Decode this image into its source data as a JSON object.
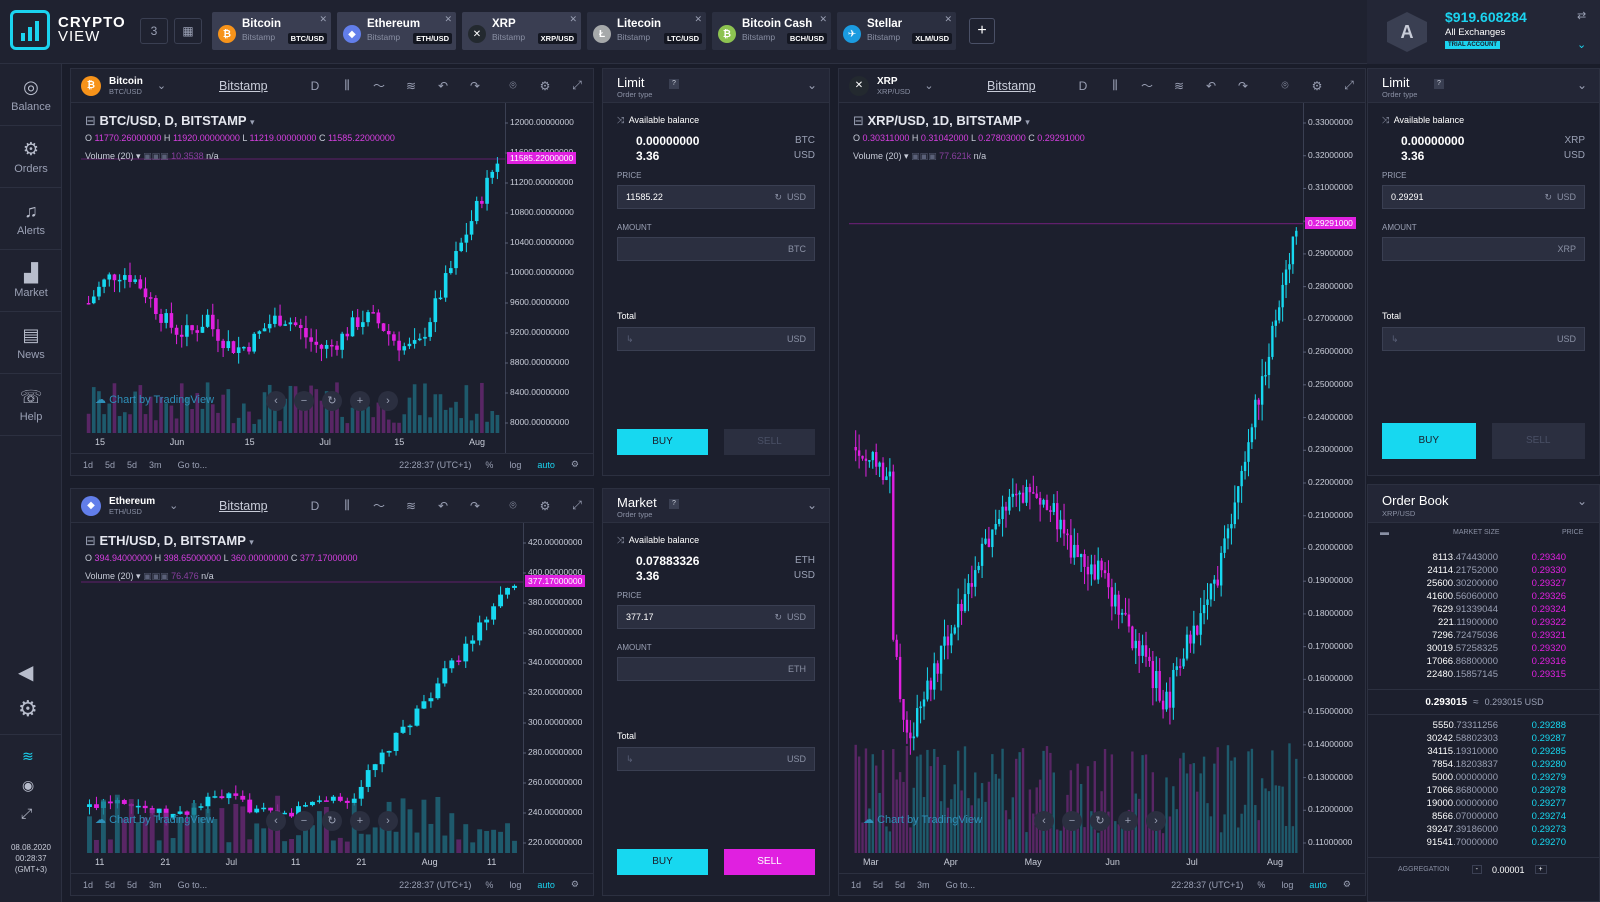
{
  "app": {
    "logo_line1": "CRYPTO",
    "logo_line2": "VIEW",
    "layout_badge": "3"
  },
  "tabs": [
    {
      "name": "Bitcoin",
      "exchange": "Bitstamp",
      "pair": "BTC/USD",
      "icon": "bitcoin-icon",
      "color": "#f7931a",
      "glyph": "₿"
    },
    {
      "name": "Ethereum",
      "exchange": "Bitstamp",
      "pair": "ETH/USD",
      "icon": "ethereum-icon",
      "color": "#627eea",
      "glyph": "◆"
    },
    {
      "name": "XRP",
      "exchange": "Bitstamp",
      "pair": "XRP/USD",
      "icon": "xrp-icon",
      "color": "#23292f",
      "glyph": "✕"
    },
    {
      "name": "Litecoin",
      "exchange": "Bitstamp",
      "pair": "LTC/USD",
      "icon": "litecoin-icon",
      "color": "#a6a9aa",
      "glyph": "Ł"
    },
    {
      "name": "Bitcoin Cash",
      "exchange": "Bitstamp",
      "pair": "BCH/USD",
      "icon": "bitcoin-cash-icon",
      "color": "#8dc351",
      "glyph": "₿"
    },
    {
      "name": "Stellar",
      "exchange": "Bitstamp",
      "pair": "XLM/USD",
      "icon": "stellar-icon",
      "color": "#1b9be0",
      "glyph": "✈"
    }
  ],
  "account": {
    "balance": "$919.608284",
    "exchanges": "All Exchanges",
    "badge": "TRIAL ACCOUNT",
    "avatar": "A"
  },
  "sidebar": {
    "items": [
      {
        "label": "Balance"
      },
      {
        "label": "Orders"
      },
      {
        "label": "Alerts"
      },
      {
        "label": "Market"
      },
      {
        "label": "News"
      },
      {
        "label": "Help"
      }
    ],
    "date": "08.08.2020",
    "time": "00:28:37",
    "tz": "(GMT+3)"
  },
  "chart_common": {
    "exchange": "Bitstamp",
    "interval": "D",
    "footer": [
      "1d",
      "5d",
      "5d",
      "3m",
      "Go to..."
    ],
    "time": "22:28:37 (UTC+1)",
    "pct": "%",
    "log": "log",
    "auto": "auto",
    "tv": "Chart by TradingView",
    "volume": "Volume (20)",
    "na": "n/a"
  },
  "btc_chart": {
    "coin": "Bitcoin",
    "pair": "BTC/USD",
    "symbol": "BTC/USD, D, BITSTAMP",
    "o": "11770.26000000",
    "h": "11920.00000000",
    "l": "11219.00000000",
    "c": "11585.22000000",
    "vol": "10.3538",
    "last": "11585.22000000",
    "yticks": [
      "12000.00000000",
      "11600.00000000",
      "11200.00000000",
      "10800.00000000",
      "10400.00000000",
      "10000.00000000",
      "9600.00000000",
      "9200.00000000",
      "8800.00000000",
      "8400.00000000",
      "8000.00000000"
    ],
    "xticks": [
      "15",
      "Jun",
      "15",
      "Jul",
      "15",
      "Aug"
    ]
  },
  "eth_chart": {
    "coin": "Ethereum",
    "pair": "ETH/USD",
    "symbol": "ETH/USD, D, BITSTAMP",
    "o": "394.94000000",
    "h": "398.65000000",
    "l": "360.00000000",
    "c": "377.17000000",
    "vol": "76.476",
    "last": "377.17000000",
    "yticks": [
      "420.00000000",
      "400.00000000",
      "380.00000000",
      "360.00000000",
      "340.00000000",
      "320.00000000",
      "300.00000000",
      "280.00000000",
      "260.00000000",
      "240.00000000",
      "220.00000000"
    ],
    "xticks": [
      "11",
      "21",
      "Jul",
      "11",
      "21",
      "Aug",
      "11"
    ]
  },
  "xrp_chart": {
    "coin": "XRP",
    "pair": "XRP/USD",
    "symbol": "XRP/USD, 1D, BITSTAMP",
    "o": "0.30311000",
    "h": "0.31042000",
    "l": "0.27803000",
    "c": "0.29291000",
    "vol": "77.621k",
    "last": "0.29291000",
    "yticks": [
      "0.33000000",
      "0.32000000",
      "0.31000000",
      "0.30000000",
      "0.29000000",
      "0.28000000",
      "0.27000000",
      "0.26000000",
      "0.25000000",
      "0.24000000",
      "0.23000000",
      "0.22000000",
      "0.21000000",
      "0.20000000",
      "0.19000000",
      "0.18000000",
      "0.17000000",
      "0.16000000",
      "0.15000000",
      "0.14000000",
      "0.13000000",
      "0.12000000",
      "0.11000000"
    ],
    "xticks": [
      "Mar",
      "Apr",
      "May",
      "Jun",
      "Jul",
      "Aug"
    ]
  },
  "order_btc": {
    "type": "Limit",
    "type_label": "Order type",
    "avail": "Available balance",
    "bal1": "0.00000000",
    "unit1": "BTC",
    "bal2": "3.36",
    "unit2": "USD",
    "price_label": "PRICE",
    "price": "11585.22",
    "amount_label": "AMOUNT",
    "total_label": "Total",
    "buy": "BUY",
    "sell": "SELL",
    "q": "?"
  },
  "order_eth": {
    "type": "Market",
    "type_label": "Order type",
    "avail": "Available balance",
    "bal1": "0.07883326",
    "unit1": "ETH",
    "bal2": "3.36",
    "unit2": "USD",
    "price_label": "PRICE",
    "price": "377.17",
    "amount_label": "AMOUNT",
    "total_label": "Total",
    "buy": "BUY",
    "sell": "SELL",
    "q": "?"
  },
  "order_xrp": {
    "type": "Limit",
    "type_label": "Order type",
    "avail": "Available balance",
    "bal1": "0.00000000",
    "unit1": "XRP",
    "bal2": "3.36",
    "unit2": "USD",
    "price_label": "PRICE",
    "price": "0.29291",
    "amount_label": "AMOUNT",
    "total_label": "Total",
    "buy": "BUY",
    "sell": "SELL",
    "q": "?"
  },
  "orderbook": {
    "title": "Order Book",
    "pair": "XRP/USD",
    "col_size": "MARKET SIZE",
    "col_price": "PRICE",
    "mid": "0.293015",
    "mid_usd": "0.293015 USD",
    "approx": "≈",
    "agg_label": "AGGREGATION",
    "agg_value": "0.00001",
    "asks": [
      [
        "8113",
        ".47443000",
        "0.29340"
      ],
      [
        "24114",
        ".21752000",
        "0.29330"
      ],
      [
        "25600",
        ".30200000",
        "0.29327"
      ],
      [
        "41600",
        ".56060000",
        "0.29326"
      ],
      [
        "7629",
        ".91339044",
        "0.29324"
      ],
      [
        "221",
        ".11900000",
        "0.29322"
      ],
      [
        "7296",
        ".72475036",
        "0.29321"
      ],
      [
        "30019",
        ".57258325",
        "0.29320"
      ],
      [
        "17066",
        ".86800000",
        "0.29316"
      ],
      [
        "22480",
        ".15857145",
        "0.29315"
      ]
    ],
    "bids": [
      [
        "5550",
        ".73311256",
        "0.29288"
      ],
      [
        "30242",
        ".58802303",
        "0.29287"
      ],
      [
        "34115",
        ".19310000",
        "0.29285"
      ],
      [
        "7854",
        ".18203837",
        "0.29280"
      ],
      [
        "5000",
        ".00000000",
        "0.29279"
      ],
      [
        "17066",
        ".86800000",
        "0.29278"
      ],
      [
        "19000",
        ".00000000",
        "0.29277"
      ],
      [
        "8566",
        ".07000000",
        "0.29274"
      ],
      [
        "39247",
        ".39186000",
        "0.29273"
      ],
      [
        "91541",
        ".70000000",
        "0.29270"
      ]
    ]
  },
  "colors": {
    "up": "#17d8f0",
    "down": "#e020e0",
    "bg": "#1c1f2d"
  }
}
